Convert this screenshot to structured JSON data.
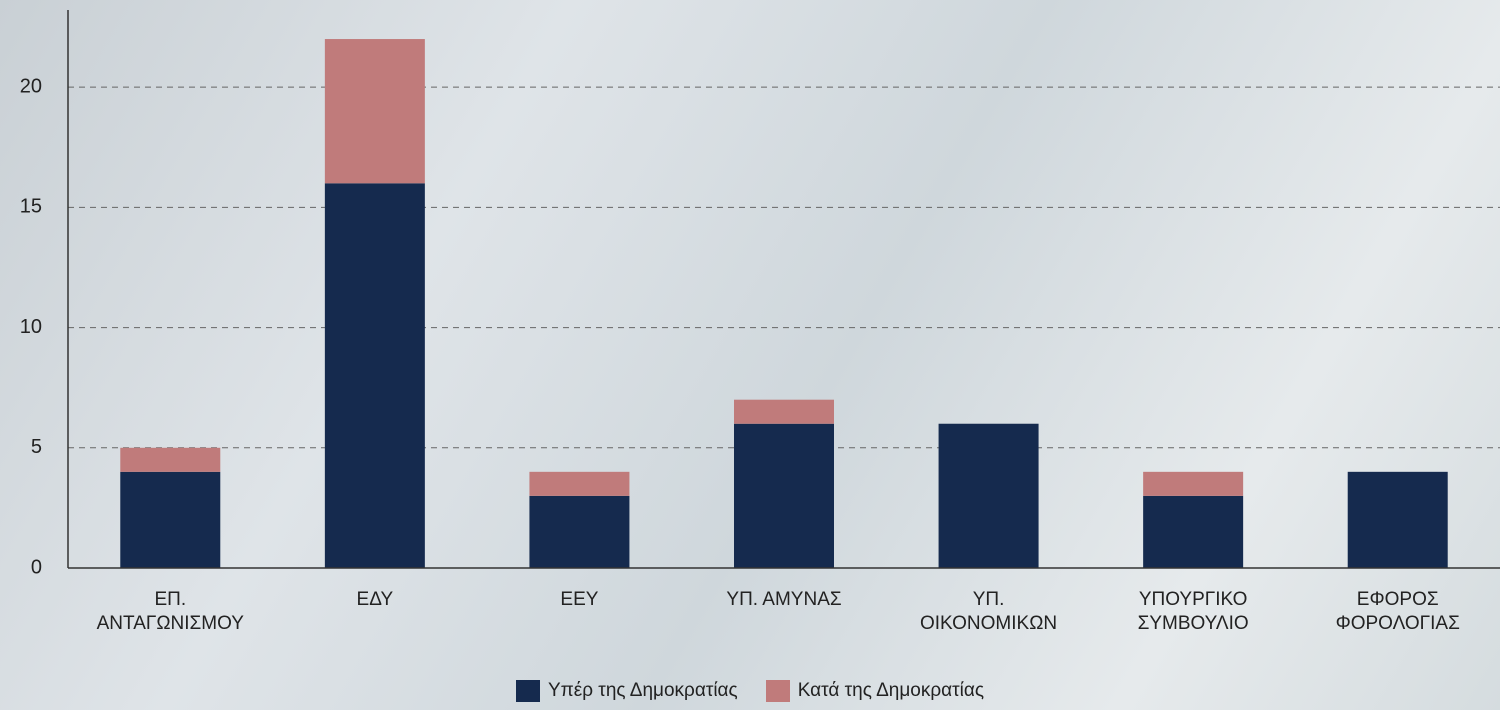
{
  "chart_data": {
    "type": "stacked_bar",
    "categories": [
      "ΕΠ. ΑΝΤΑΓΩΝΙΣΜΟΥ",
      "ΕΔΥ",
      "ΕΕΥ",
      "ΥΠ. ΑΜΥΝΑΣ",
      "ΥΠ. ΟΙΚΟΝΟΜΙΚΩΝ",
      "ΥΠΟΥΡΓΙΚΟ ΣΥΜΒΟΥΛΙΟ",
      "ΕΦΟΡΟΣ ΦΟΡΟΛΟΓΙΑΣ"
    ],
    "series": [
      {
        "name": "Υπέρ της Δημοκρατίας",
        "color": "#152a4e",
        "values": [
          4,
          16,
          3,
          6,
          6,
          3,
          4
        ]
      },
      {
        "name": "Κατά της Δημοκρατίας",
        "color": "#c07b7b",
        "values": [
          1,
          6,
          1,
          1,
          0,
          1,
          0
        ]
      }
    ],
    "ylim": [
      0,
      23
    ],
    "yticks": [
      0,
      5,
      10,
      15,
      20
    ],
    "grid": true,
    "legend": "bottom"
  }
}
